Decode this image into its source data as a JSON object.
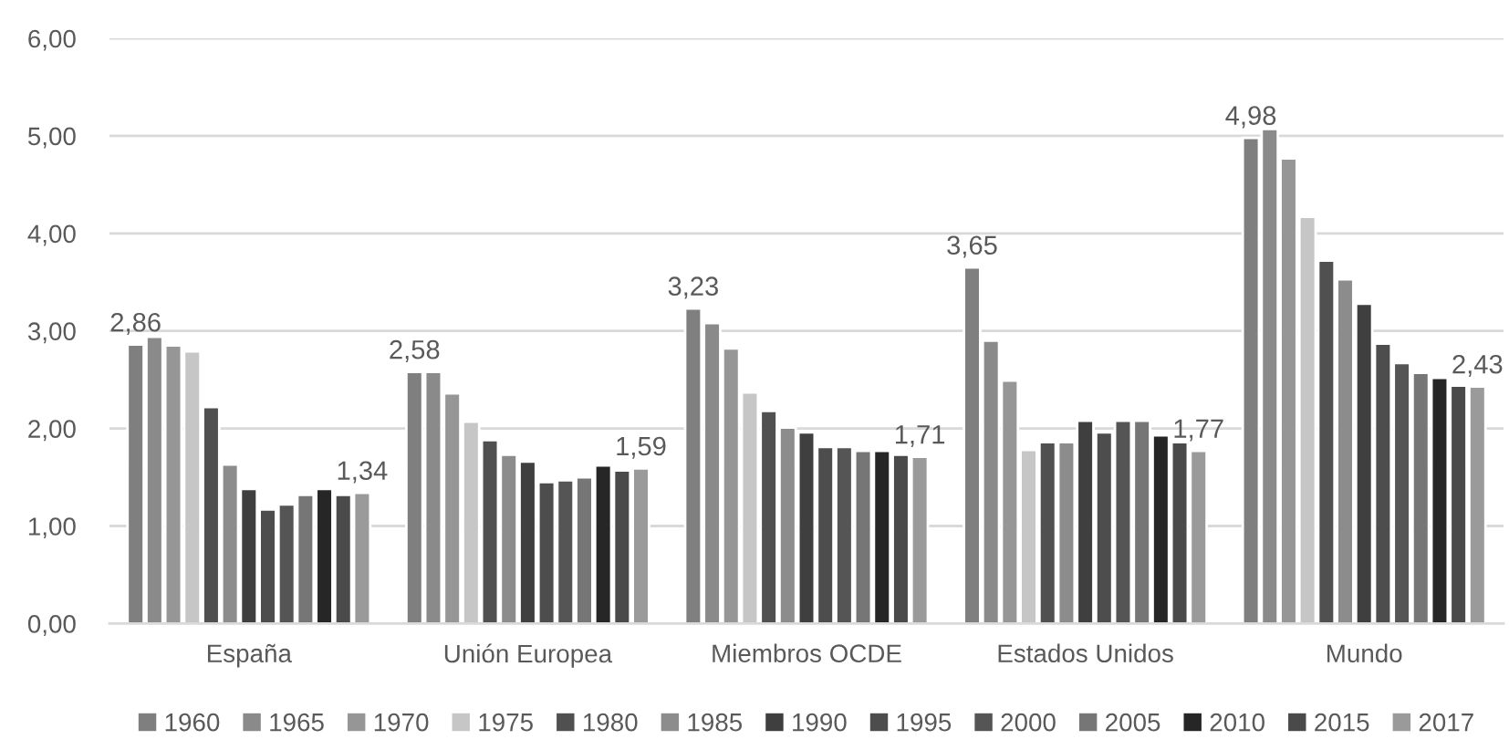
{
  "chart_data": {
    "type": "bar",
    "categories": [
      "España",
      "Unión Europea",
      "Miembros OCDE",
      "Estados Unidos",
      "Mundo"
    ],
    "series": [
      {
        "name": "1960",
        "color": "#7f7f7f",
        "values": [
          2.86,
          2.58,
          3.23,
          3.65,
          4.98
        ],
        "value_labels": [
          "2,86",
          "2,58",
          "3,23",
          "3,65",
          "4,98"
        ]
      },
      {
        "name": "1965",
        "color": "#8a8a8a",
        "values": [
          2.94,
          2.58,
          3.08,
          2.9,
          5.07
        ]
      },
      {
        "name": "1970",
        "color": "#969696",
        "values": [
          2.85,
          2.36,
          2.82,
          2.49,
          4.77
        ]
      },
      {
        "name": "1975",
        "color": "#c6c6c6",
        "values": [
          2.79,
          2.07,
          2.37,
          1.78,
          4.17
        ]
      },
      {
        "name": "1980",
        "color": "#505050",
        "values": [
          2.22,
          1.88,
          2.18,
          1.86,
          3.72
        ]
      },
      {
        "name": "1985",
        "color": "#8c8c8c",
        "values": [
          1.63,
          1.73,
          2.01,
          1.86,
          3.53
        ]
      },
      {
        "name": "1990",
        "color": "#3f3f3f",
        "values": [
          1.38,
          1.66,
          1.96,
          2.08,
          3.28
        ]
      },
      {
        "name": "1995",
        "color": "#4d4d4d",
        "values": [
          1.17,
          1.45,
          1.81,
          1.96,
          2.87
        ]
      },
      {
        "name": "2000",
        "color": "#555555",
        "values": [
          1.22,
          1.47,
          1.81,
          2.08,
          2.67
        ]
      },
      {
        "name": "2005",
        "color": "#767676",
        "values": [
          1.32,
          1.5,
          1.77,
          2.08,
          2.57
        ]
      },
      {
        "name": "2010",
        "color": "#262626",
        "values": [
          1.38,
          1.62,
          1.77,
          1.93,
          2.52
        ]
      },
      {
        "name": "2015",
        "color": "#4a4a4a",
        "values": [
          1.32,
          1.57,
          1.73,
          1.86,
          2.44
        ]
      },
      {
        "name": "2017",
        "color": "#9a9a9a",
        "values": [
          1.34,
          1.59,
          1.71,
          1.77,
          2.43
        ],
        "value_labels": [
          "1,34",
          "1,59",
          "1,71",
          "1,77",
          "2,43"
        ]
      }
    ],
    "ylim": [
      0,
      6
    ],
    "yticks": [
      {
        "value": 0,
        "label": "0,00"
      },
      {
        "value": 1,
        "label": "1,00"
      },
      {
        "value": 2,
        "label": "2,00"
      },
      {
        "value": 3,
        "label": "3,00"
      },
      {
        "value": 4,
        "label": "4,00"
      },
      {
        "value": 5,
        "label": "5,00"
      },
      {
        "value": 6,
        "label": "6,00"
      }
    ],
    "grid": "y",
    "legend": "bottom"
  }
}
